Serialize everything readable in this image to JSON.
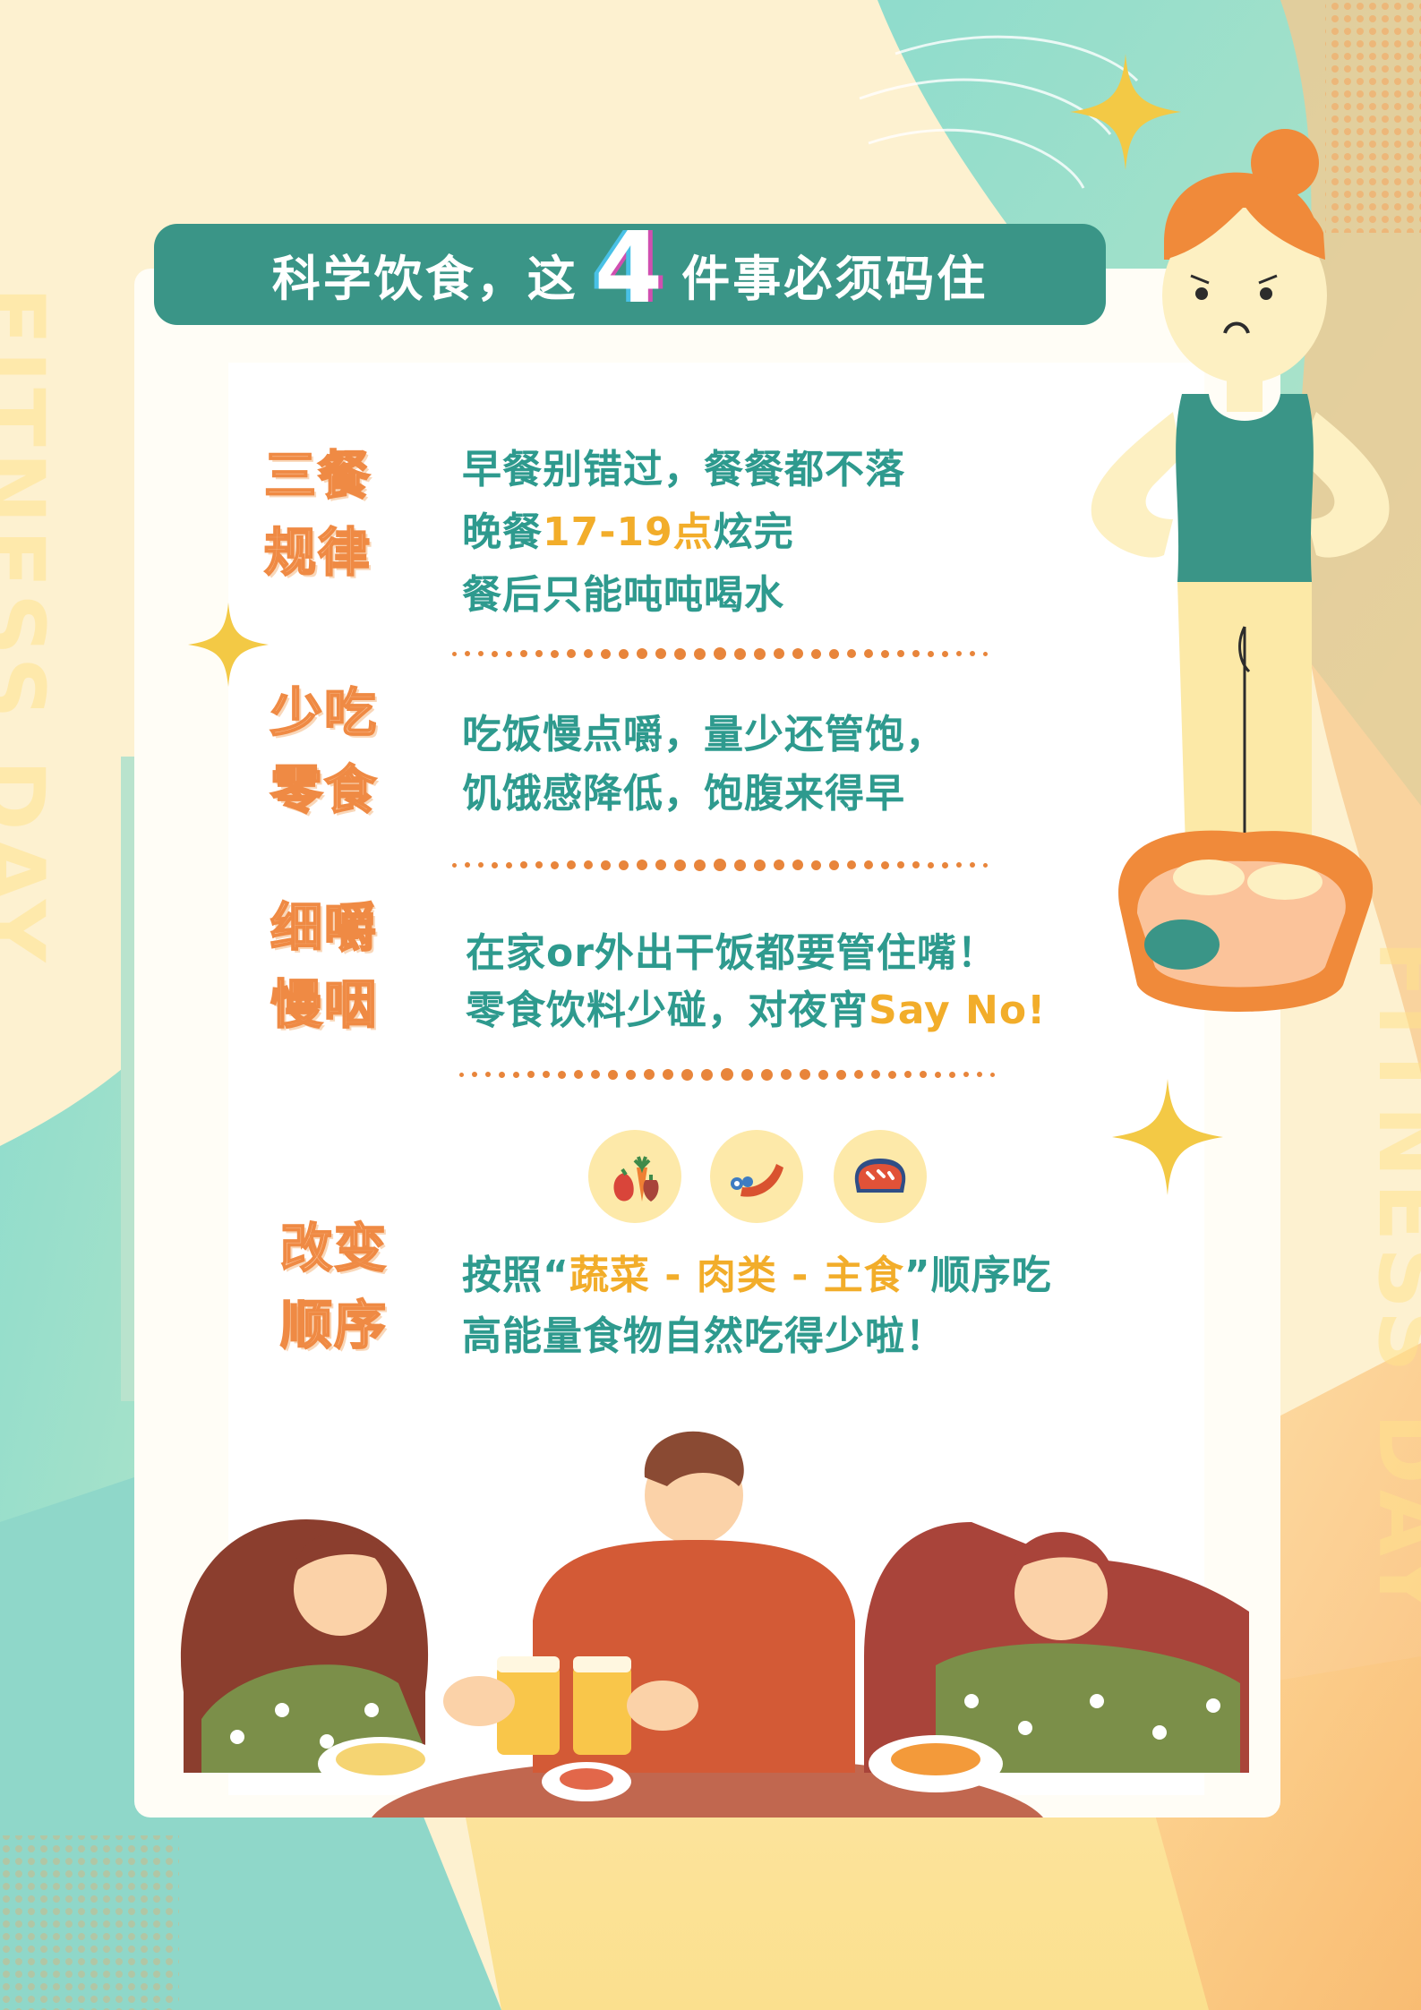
{
  "header": {
    "title_before": "科学饮食，这",
    "title_number": "4",
    "title_after": "件事必须码住"
  },
  "watermark": {
    "left_text": "FITNESS DAY",
    "right_text": "FITNESS DAY"
  },
  "sections": [
    {
      "heading_line1": "三餐",
      "heading_line2": "规律",
      "line1": "早餐别错过，餐餐都不落",
      "line2_before": "晚餐",
      "line2_highlight": "17-19点",
      "line2_after": "炫完",
      "line3": "餐后只能吨吨喝水"
    },
    {
      "heading_line1": "少吃",
      "heading_line2": "零食",
      "line1": "吃饭慢点嚼，量少还管饱，",
      "line2": "饥饿感降低，饱腹来得早"
    },
    {
      "heading_line1": "细嚼",
      "heading_line2": "慢咽",
      "line1": "在家or外出干饭都要管住嘴！",
      "line2_before": "零食饮料少碰，对夜宵",
      "line2_highlight": "Say No!"
    },
    {
      "heading_line1": "改变",
      "heading_line2": "顺序",
      "line1_before": "按照“",
      "line1_highlight": "蔬菜 - 肉类 - 主食",
      "line1_after": "”顺序吃",
      "line2": "高能量食物自然吃得少啦！"
    }
  ],
  "food_icons": [
    "vegetable-icon",
    "meat-icon",
    "bread-icon"
  ],
  "colors": {
    "teal": "#3a9587",
    "text_teal": "#2e9a8e",
    "highlight": "#f2ad2a",
    "heading_orange": "#ef8a44",
    "background_cream": "#fdf3d4",
    "mint": "#8fd7c9"
  }
}
